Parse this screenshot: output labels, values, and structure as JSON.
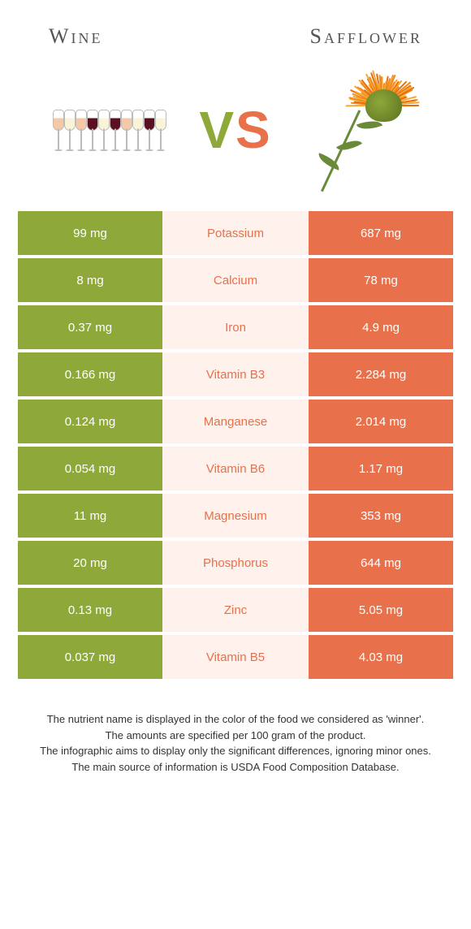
{
  "header": {
    "left_title": "Wine",
    "right_title": "Safflower"
  },
  "vs": {
    "v": "V",
    "s": "S"
  },
  "colors": {
    "left_bg": "#8fa83a",
    "right_bg": "#e8704a",
    "mid_bg": "#fff2ed",
    "mid_text": "#e8704a",
    "cell_text": "#ffffff",
    "page_bg": "#ffffff"
  },
  "rows": [
    {
      "left": "99 mg",
      "label": "Potassium",
      "right": "687 mg"
    },
    {
      "left": "8 mg",
      "label": "Calcium",
      "right": "78 mg"
    },
    {
      "left": "0.37 mg",
      "label": "Iron",
      "right": "4.9 mg"
    },
    {
      "left": "0.166 mg",
      "label": "Vitamin B3",
      "right": "2.284 mg"
    },
    {
      "left": "0.124 mg",
      "label": "Manganese",
      "right": "2.014 mg"
    },
    {
      "left": "0.054 mg",
      "label": "Vitamin B6",
      "right": "1.17 mg"
    },
    {
      "left": "11 mg",
      "label": "Magnesium",
      "right": "353 mg"
    },
    {
      "left": "20 mg",
      "label": "Phosphorus",
      "right": "644 mg"
    },
    {
      "left": "0.13 mg",
      "label": "Zinc",
      "right": "5.05 mg"
    },
    {
      "left": "0.037 mg",
      "label": "Vitamin B5",
      "right": "4.03 mg"
    }
  ],
  "footnote": {
    "line1": "The nutrient name is displayed in the color of the food we considered as 'winner'.",
    "line2": "The amounts are specified per 100 gram of the product.",
    "line3": "The infographic aims to display only the significant differences, ignoring minor ones.",
    "line4": "The main source of information is USDA Food Composition Database."
  },
  "wine_glass_colors": [
    "#f4c9a8",
    "#f9f3d8",
    "#f4c9a8",
    "#5a1020",
    "#f9f3d8",
    "#5a1020",
    "#f4c9a8",
    "#f9f3d8",
    "#5a1020",
    "#f9f3d8"
  ]
}
